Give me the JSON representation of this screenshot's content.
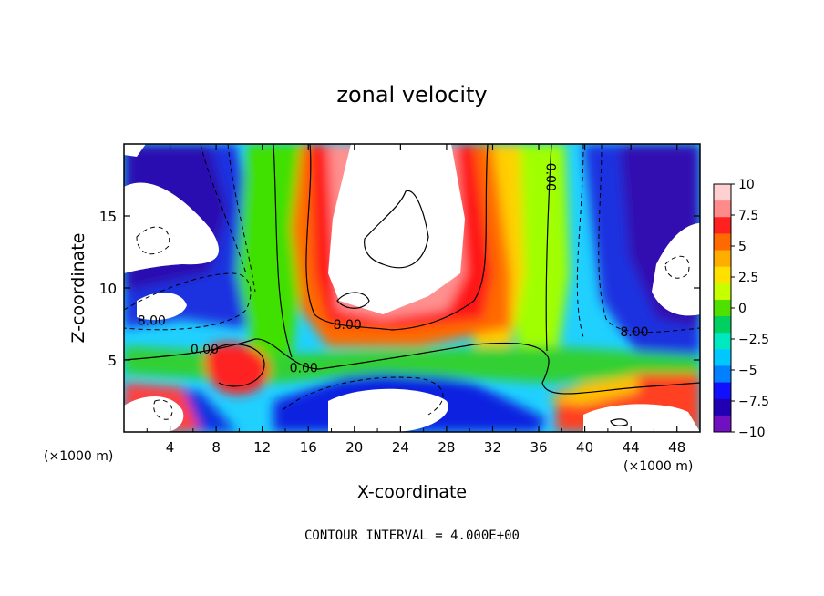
{
  "chart_data": {
    "type": "heatmap",
    "title": "zonal velocity",
    "xlabel": "X-coordinate",
    "ylabel": "Z-coordinate",
    "x_unit_label": "(×1000 m)",
    "x_unit_label_right": "(×1000 m)",
    "footer": "CONTOUR INTERVAL = 4.000E+00",
    "xlim": [
      0,
      50
    ],
    "ylim": [
      0,
      20
    ],
    "x_ticks": [
      "4",
      "8",
      "12",
      "16",
      "20",
      "24",
      "28",
      "32",
      "36",
      "40",
      "44",
      "48"
    ],
    "y_ticks": [
      "5",
      "10",
      "15"
    ],
    "colorbar": {
      "min": -10,
      "max": 10,
      "ticks": [
        "10",
        "7.5",
        "5",
        "2.5",
        "0",
        "−2.5",
        "−5",
        "−7.5",
        "−10"
      ],
      "colors": [
        "#ffd0d0",
        "#ff8a8a",
        "#ff2020",
        "#ff6a00",
        "#ffae00",
        "#ffe000",
        "#c8ff00",
        "#50e000",
        "#00d060",
        "#00e8c0",
        "#00c8ff",
        "#0080ff",
        "#1010ff",
        "#2000b0",
        "#7010c0"
      ]
    },
    "contour_labels": [
      {
        "text": "8.00",
        "x": 2.4,
        "z": 7.7
      },
      {
        "text": "8.00",
        "x": 19.4,
        "z": 7.4
      },
      {
        "text": "0.00",
        "x": 7.0,
        "z": 5.7
      },
      {
        "text": "0.00",
        "x": 15.6,
        "z": 4.4
      },
      {
        "text": "0.00",
        "x": 37.0,
        "z": 17.7
      },
      {
        "text": "8.00",
        "x": 44.3,
        "z": 6.9
      }
    ],
    "contour_interval": 4.0
  }
}
